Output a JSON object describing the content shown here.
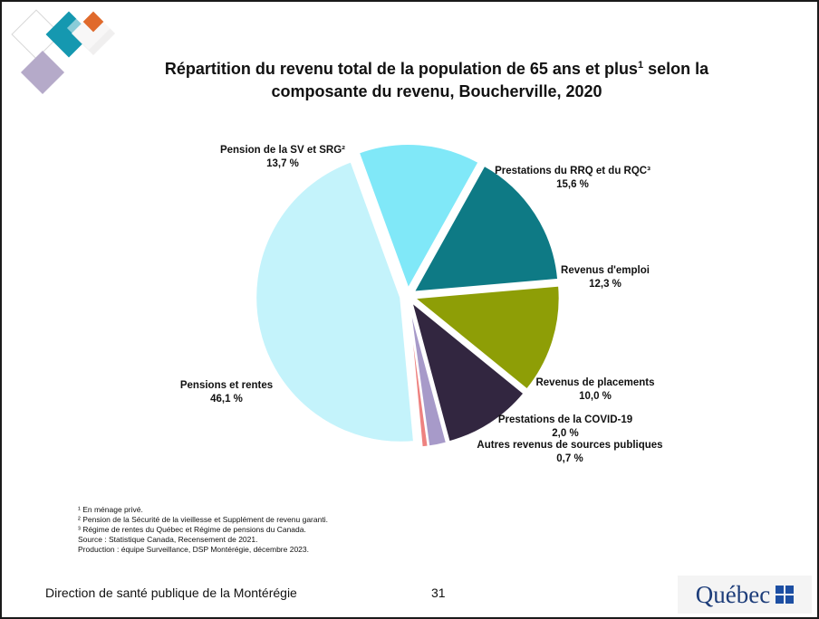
{
  "slide": {
    "title_main": "Répartition du revenu total de la population de 65 ans et plus",
    "title_sup": "1",
    "title_rest": " selon la composante du revenu, Boucherville, 2020",
    "notes": [
      "¹ En ménage privé.",
      "² Pension de la Sécurité de la vieillesse et Supplément de revenu garanti.",
      "³ Régime de rentes du Québec et Régime de pensions du Canada.",
      "Source : Statistique Canada, Recensement de 2021.",
      "Production : équipe Surveillance, DSP Montérégie, décembre 2023."
    ],
    "footer": "Direction de santé publique de la Montérégie",
    "page_number": "31",
    "logo_text": "Québec"
  },
  "chart_data": {
    "type": "pie",
    "slices": [
      {
        "name": "Pension de la SV et SRG²",
        "value": 13.7,
        "label": "13,7 %",
        "color": "#80E8F8"
      },
      {
        "name": "Prestations du RRQ et du RQC³",
        "value": 15.6,
        "label": "15,6 %",
        "color": "#0E7A85"
      },
      {
        "name": "Revenus d'emploi",
        "value": 12.3,
        "label": "12,3 %",
        "color": "#8E9E06"
      },
      {
        "name": "Revenus de placements",
        "value": 10.0,
        "label": "10,0 %",
        "color": "#322640"
      },
      {
        "name": "Prestations de la COVID-19",
        "value": 2.0,
        "label": "2,0 %",
        "color": "#A79AC9"
      },
      {
        "name": "Autres revenus de sources publiques",
        "value": 0.7,
        "label": "0,7 %",
        "color": "#EE8280"
      },
      {
        "name": "Pensions et rentes",
        "value": 46.1,
        "label": "46,1 %",
        "color": "#C4F3FB"
      }
    ]
  }
}
